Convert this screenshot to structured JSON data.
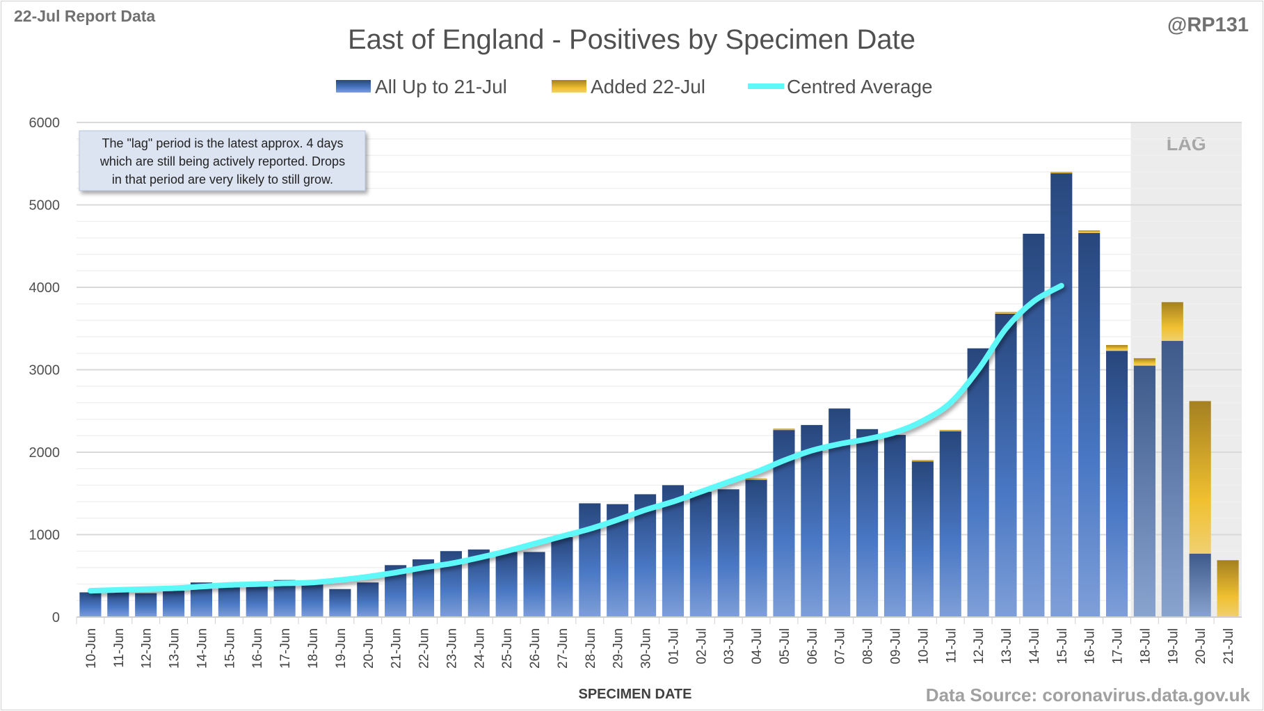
{
  "header": {
    "report_label": "22-Jul Report Data",
    "handle": "@RP131"
  },
  "footer": {
    "source": "Data Source: coronavirus.data.gov.uk"
  },
  "annotation": {
    "lines": [
      "The \"lag\" period is the latest approx. 4 days",
      "which are still being actively reported.  Drops",
      "in that period are very likely to still grow."
    ]
  },
  "lag_label": "LAG",
  "colors": {
    "blue_top": "#2a4a80",
    "blue_bottom": "#7f9fd8",
    "gold_top": "#a88420",
    "gold_mid": "#f0c030",
    "avg": "#5ff8f8",
    "lag_bg": "#ececec"
  },
  "chart_data": {
    "type": "bar",
    "title": "East of England - Positives by Specimen Date",
    "xlabel": "SPECIMEN DATE",
    "ylabel": "",
    "ylim": [
      0,
      6000
    ],
    "yticks": [
      0,
      1000,
      2000,
      3000,
      4000,
      5000,
      6000
    ],
    "grid": true,
    "legend_position": "top-center",
    "lag_categories": [
      "18-Jul",
      "19-Jul",
      "20-Jul",
      "21-Jul"
    ],
    "categories": [
      "10-Jun",
      "11-Jun",
      "12-Jun",
      "13-Jun",
      "14-Jun",
      "15-Jun",
      "16-Jun",
      "17-Jun",
      "18-Jun",
      "19-Jun",
      "20-Jun",
      "21-Jun",
      "22-Jun",
      "23-Jun",
      "24-Jun",
      "25-Jun",
      "26-Jun",
      "27-Jun",
      "28-Jun",
      "29-Jun",
      "30-Jun",
      "01-Jul",
      "02-Jul",
      "03-Jul",
      "04-Jul",
      "05-Jul",
      "06-Jul",
      "07-Jul",
      "08-Jul",
      "09-Jul",
      "10-Jul",
      "11-Jul",
      "12-Jul",
      "13-Jul",
      "14-Jul",
      "15-Jul",
      "16-Jul",
      "17-Jul",
      "18-Jul",
      "19-Jul",
      "20-Jul",
      "21-Jul"
    ],
    "series": [
      {
        "name": "All Up to 21-Jul",
        "kind": "bar",
        "values": [
          300,
          300,
          290,
          320,
          420,
          410,
          390,
          450,
          420,
          340,
          420,
          630,
          700,
          800,
          820,
          790,
          790,
          970,
          1380,
          1370,
          1490,
          1600,
          1520,
          1550,
          1670,
          2270,
          2330,
          2530,
          2280,
          2210,
          1890,
          2260,
          3260,
          3680,
          4650,
          5390,
          4660,
          3230,
          3050,
          3350,
          770,
          0
        ]
      },
      {
        "name": "Added 22-Jul",
        "kind": "bar",
        "values": [
          0,
          0,
          0,
          0,
          0,
          0,
          0,
          0,
          0,
          0,
          0,
          0,
          0,
          0,
          0,
          0,
          0,
          0,
          0,
          0,
          0,
          0,
          0,
          0,
          10,
          15,
          0,
          0,
          0,
          0,
          15,
          10,
          0,
          20,
          0,
          10,
          30,
          70,
          90,
          470,
          1850,
          690
        ]
      },
      {
        "name": "Centred Average",
        "kind": "line",
        "values": [
          320,
          330,
          340,
          350,
          370,
          390,
          400,
          410,
          420,
          450,
          490,
          540,
          600,
          650,
          720,
          800,
          890,
          980,
          1070,
          1180,
          1300,
          1400,
          1520,
          1640,
          1760,
          1900,
          2020,
          2100,
          2160,
          2240,
          2380,
          2600,
          3000,
          3500,
          3830,
          4020,
          null,
          null,
          null,
          null,
          null,
          null
        ]
      }
    ]
  }
}
